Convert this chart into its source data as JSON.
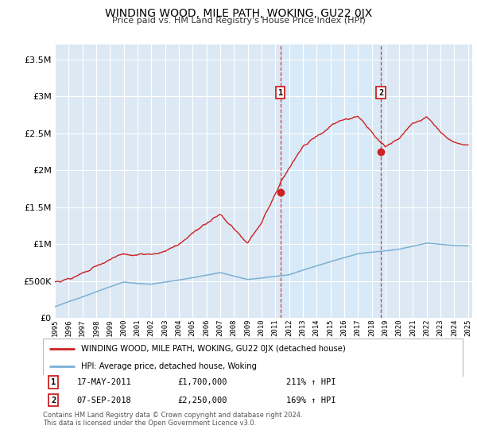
{
  "title": "WINDING WOOD, MILE PATH, WOKING, GU22 0JX",
  "subtitle": "Price paid vs. HM Land Registry's House Price Index (HPI)",
  "background_color": "#ffffff",
  "plot_bg_color": "#dce9f5",
  "grid_color": "#ffffff",
  "ylim": [
    0,
    3700000
  ],
  "yticks": [
    0,
    500000,
    1000000,
    1500000,
    2000000,
    2500000,
    3000000,
    3500000
  ],
  "year_start": 1995,
  "year_end": 2025,
  "red_line_color": "#cc2222",
  "blue_line_color": "#7ab0d4",
  "sale1_year": 2011.37,
  "sale1_price": 1700000,
  "sale2_year": 2018.67,
  "sale2_price": 2250000,
  "vline_color": "#cc2222",
  "span_color": "#d8eaf8",
  "legend_label_red": "WINDING WOOD, MILE PATH, WOKING, GU22 0JX (detached house)",
  "legend_label_blue": "HPI: Average price, detached house, Woking",
  "footer_text": "Contains HM Land Registry data © Crown copyright and database right 2024.\nThis data is licensed under the Open Government Licence v3.0.",
  "table_row1": [
    "1",
    "17-MAY-2011",
    "£1,700,000",
    "211% ↑ HPI"
  ],
  "table_row2": [
    "2",
    "07-SEP-2018",
    "£2,250,000",
    "169% ↑ HPI"
  ]
}
